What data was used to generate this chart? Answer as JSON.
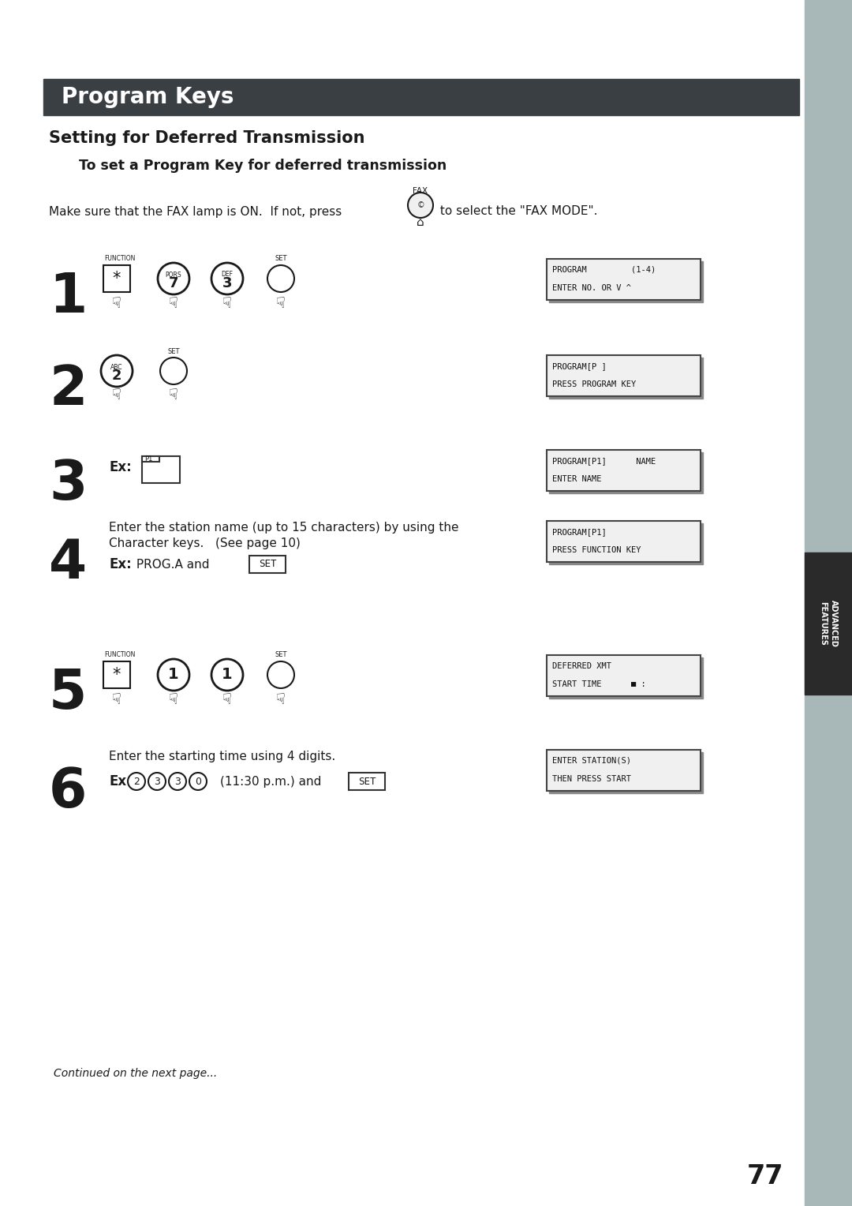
{
  "page_bg": "#ffffff",
  "sidebar_bg": "#a8b8b8",
  "header_bg": "#3a3f44",
  "header_text": "Program Keys",
  "header_text_color": "#ffffff",
  "section_title": "Setting for Deferred Transmission",
  "subsection_title": "To set a Program Key for deferred transmission",
  "page_number": "77",
  "continued_text": "Continued on the next page...",
  "display_boxes": [
    [
      "PROGRAM         (1-4)",
      "ENTER NO. OR V ^"
    ],
    [
      "PROGRAM[P ]",
      "PRESS PROGRAM KEY"
    ],
    [
      "PROGRAM[P1]      NAME",
      "ENTER NAME"
    ],
    [
      "PROGRAM[P1]",
      "PRESS FUNCTION KEY"
    ],
    [
      "DEFERRED XMT",
      "START TIME      ■ :"
    ],
    [
      "ENTER STATION(S)",
      "THEN PRESS START"
    ]
  ]
}
